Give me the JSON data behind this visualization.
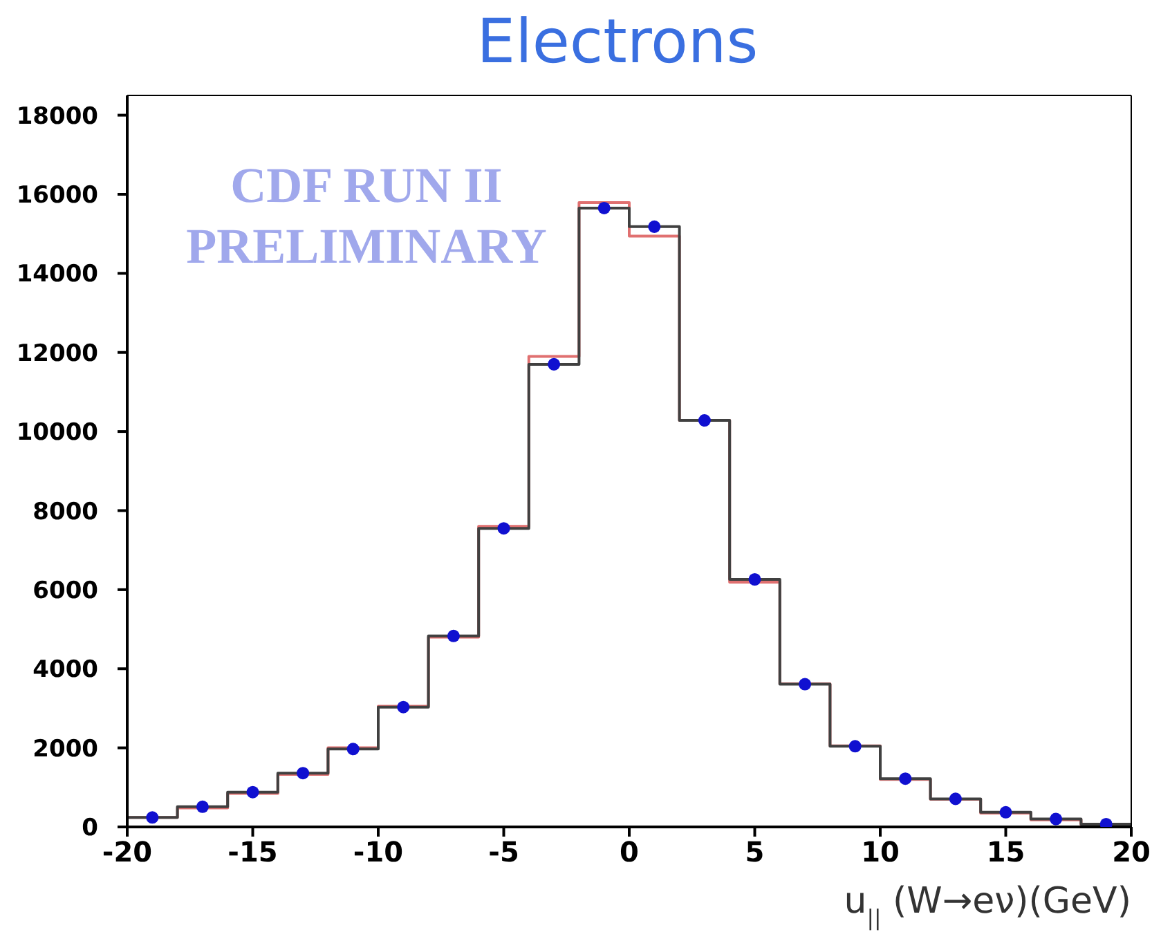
{
  "chart_data": {
    "type": "histogram",
    "title": "Electrons",
    "xlabel": "u$_{||}$ (W→eν)(GeV)",
    "bins": [
      -20,
      -18,
      -16,
      -14,
      -12,
      -10,
      -8,
      -6,
      -4,
      -2,
      0,
      2,
      4,
      6,
      8,
      10,
      12,
      14,
      16,
      18,
      20
    ],
    "series": [
      {
        "color": "#e07070",
        "values": [
          240,
          480,
          850,
          1330,
          2000,
          3050,
          4800,
          7600,
          11900,
          15790,
          14940,
          10280,
          6190,
          3620,
          2050,
          1200,
          700,
          350,
          180,
          50
        ]
      },
      {
        "color": "#404040",
        "values": [
          240,
          510,
          880,
          1360,
          1970,
          3030,
          4830,
          7550,
          11700,
          15650,
          15180,
          10280,
          6260,
          3610,
          2040,
          1220,
          710,
          370,
          200,
          70
        ]
      },
      {
        "type": "scatter",
        "color": "#1010d0",
        "marker": "circle",
        "x": [
          -19,
          -17,
          -15,
          -13,
          -11,
          -9,
          -7,
          -5,
          -3,
          -1,
          1,
          3,
          5,
          7,
          9,
          11,
          13,
          15,
          17,
          19
        ],
        "values": [
          240,
          510,
          880,
          1360,
          1970,
          3030,
          4830,
          7550,
          11700,
          15650,
          15180,
          10280,
          6260,
          3610,
          2040,
          1220,
          710,
          370,
          200,
          70
        ]
      }
    ],
    "xlim": [
      -20,
      20
    ],
    "xticks": [
      -20,
      -15,
      -10,
      -5,
      0,
      5,
      10,
      15,
      20
    ],
    "ylim": [
      0,
      18500
    ],
    "yticks": [
      0,
      2000,
      4000,
      6000,
      8000,
      10000,
      12000,
      14000,
      16000,
      18000
    ],
    "grid": false,
    "annotations": [
      "CDF RUN II PRELIMINARY"
    ]
  }
}
